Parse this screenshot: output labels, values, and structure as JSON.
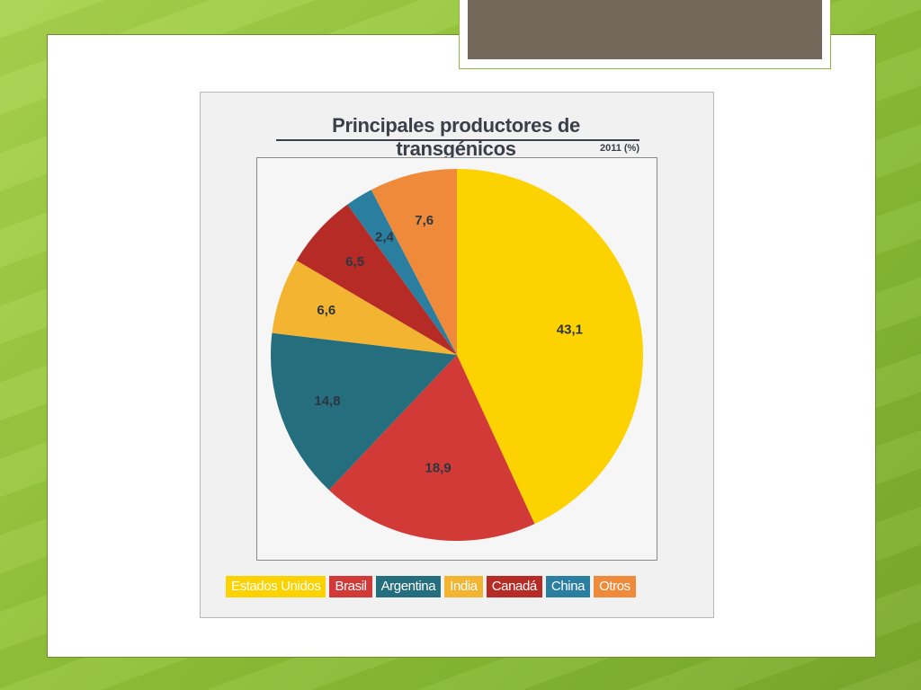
{
  "chart_data": {
    "type": "pie",
    "title": "Principales productores de transgénicos",
    "subtitle": "2011 (%)",
    "categories": [
      "Estados Unidos",
      "Brasil",
      "Argentina",
      "India",
      "Canadá",
      "China",
      "Otros"
    ],
    "values": [
      43.1,
      18.9,
      14.8,
      6.6,
      6.5,
      2.4,
      7.6
    ],
    "value_labels": [
      "43,1",
      "18,9",
      "14,8",
      "6,6",
      "6,5",
      "2,4",
      "7,6"
    ],
    "colors": [
      "#fcd200",
      "#d13a37",
      "#246e7e",
      "#f3b431",
      "#b72b26",
      "#2a7fa0",
      "#ef8a3a"
    ],
    "legend_position": "bottom"
  }
}
